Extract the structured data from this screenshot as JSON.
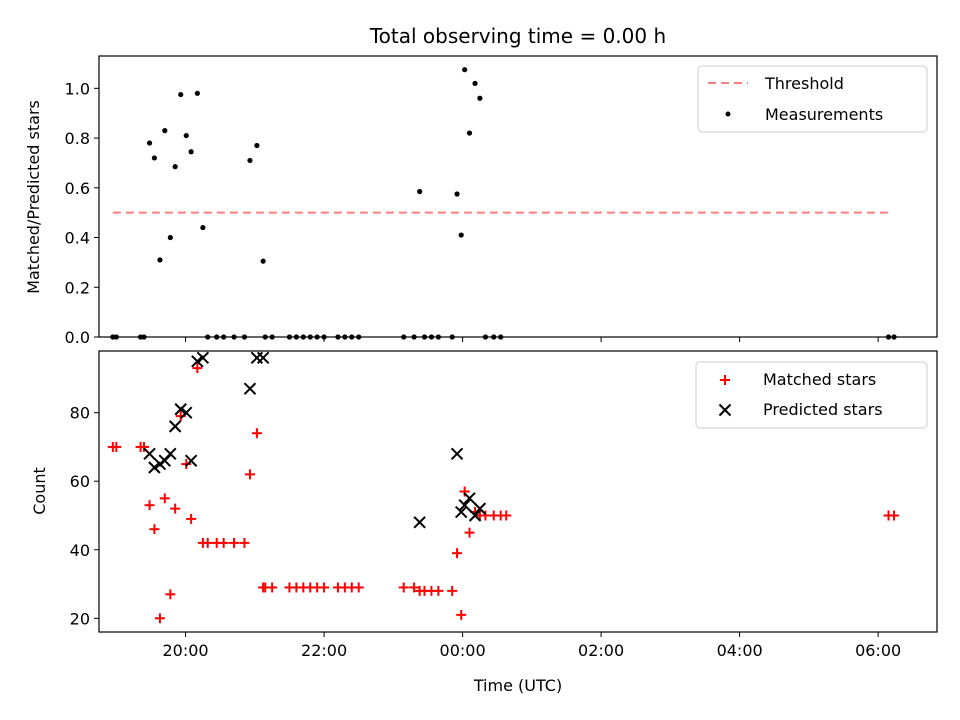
{
  "figure": {
    "title": "Total observing time = 0.00 h"
  },
  "colors": {
    "threshold": "#ff7f7f",
    "measurement": "#000000",
    "matched": "#ff0000",
    "predicted": "#000000",
    "axes": "#000000"
  },
  "chart_data": [
    {
      "type": "scatter",
      "ylabel": "Matched/Predicted stars",
      "xlabel": "",
      "x_unit": "hours (UTC, values beyond 24 denote next day)",
      "xlim": [
        18.75,
        30.85
      ],
      "ylim": [
        0.0,
        1.13
      ],
      "yticks": [
        0.0,
        0.2,
        0.4,
        0.6,
        0.8,
        1.0
      ],
      "ytick_labels": [
        "0.0",
        "0.2",
        "0.4",
        "0.6",
        "0.8",
        "1.0"
      ],
      "legend_placement": "top-right",
      "threshold": {
        "name": "Threshold",
        "value": 0.5,
        "x_range": [
          18.95,
          30.2
        ]
      },
      "series": [
        {
          "name": "Measurements",
          "points": [
            [
              18.95,
              0.0
            ],
            [
              19.0,
              0.0
            ],
            [
              19.35,
              0.0
            ],
            [
              19.4,
              0.0
            ],
            [
              19.48,
              0.78
            ],
            [
              19.55,
              0.72
            ],
            [
              19.63,
              0.31
            ],
            [
              19.7,
              0.83
            ],
            [
              19.78,
              0.4
            ],
            [
              19.85,
              0.685
            ],
            [
              19.93,
              0.975
            ],
            [
              20.01,
              0.81
            ],
            [
              20.08,
              0.745
            ],
            [
              20.17,
              0.98
            ],
            [
              20.25,
              0.44
            ],
            [
              20.32,
              0.0
            ],
            [
              20.45,
              0.0
            ],
            [
              20.55,
              0.0
            ],
            [
              20.7,
              0.0
            ],
            [
              20.85,
              0.0
            ],
            [
              20.93,
              0.71
            ],
            [
              21.03,
              0.77
            ],
            [
              21.12,
              0.305
            ],
            [
              21.15,
              0.0
            ],
            [
              21.25,
              0.0
            ],
            [
              21.5,
              0.0
            ],
            [
              21.6,
              0.0
            ],
            [
              21.7,
              0.0
            ],
            [
              21.8,
              0.0
            ],
            [
              21.9,
              0.0
            ],
            [
              22.0,
              0.0
            ],
            [
              22.2,
              0.0
            ],
            [
              22.3,
              0.0
            ],
            [
              22.4,
              0.0
            ],
            [
              22.5,
              0.0
            ],
            [
              23.15,
              0.0
            ],
            [
              23.3,
              0.0
            ],
            [
              23.38,
              0.585
            ],
            [
              23.45,
              0.0
            ],
            [
              23.55,
              0.0
            ],
            [
              23.65,
              0.0
            ],
            [
              23.85,
              0.0
            ],
            [
              23.92,
              0.575
            ],
            [
              23.98,
              0.41
            ],
            [
              24.03,
              1.075
            ],
            [
              24.1,
              0.82
            ],
            [
              24.18,
              1.02
            ],
            [
              24.25,
              0.96
            ],
            [
              24.33,
              0.0
            ],
            [
              24.45,
              0.0
            ],
            [
              24.55,
              0.0
            ],
            [
              30.15,
              0.0
            ],
            [
              30.23,
              0.0
            ]
          ]
        }
      ]
    },
    {
      "type": "scatter",
      "ylabel": "Count",
      "xlabel": "Time (UTC)",
      "xlim": [
        18.75,
        30.85
      ],
      "ylim": [
        16.0,
        98.0
      ],
      "yticks": [
        20,
        40,
        60,
        80
      ],
      "ytick_labels": [
        "20",
        "40",
        "60",
        "80"
      ],
      "xticks": [
        20,
        22,
        24,
        26,
        28,
        30
      ],
      "xtick_labels": [
        "20:00",
        "22:00",
        "00:00",
        "02:00",
        "04:00",
        "06:00"
      ],
      "legend_placement": "top-right",
      "series": [
        {
          "name": "Matched stars",
          "marker": "plus",
          "points": [
            [
              18.95,
              70
            ],
            [
              19.0,
              70
            ],
            [
              19.35,
              70
            ],
            [
              19.4,
              70
            ],
            [
              19.48,
              53
            ],
            [
              19.55,
              46
            ],
            [
              19.63,
              20
            ],
            [
              19.7,
              55
            ],
            [
              19.78,
              27
            ],
            [
              19.85,
              52
            ],
            [
              19.93,
              79
            ],
            [
              20.01,
              65
            ],
            [
              20.08,
              49
            ],
            [
              20.17,
              93
            ],
            [
              20.25,
              42
            ],
            [
              20.32,
              42
            ],
            [
              20.45,
              42
            ],
            [
              20.55,
              42
            ],
            [
              20.7,
              42
            ],
            [
              20.85,
              42
            ],
            [
              20.93,
              62
            ],
            [
              21.03,
              74
            ],
            [
              21.12,
              29
            ],
            [
              21.15,
              29
            ],
            [
              21.25,
              29
            ],
            [
              21.5,
              29
            ],
            [
              21.6,
              29
            ],
            [
              21.7,
              29
            ],
            [
              21.8,
              29
            ],
            [
              21.9,
              29
            ],
            [
              22.0,
              29
            ],
            [
              22.2,
              29
            ],
            [
              22.3,
              29
            ],
            [
              22.4,
              29
            ],
            [
              22.5,
              29
            ],
            [
              23.15,
              29
            ],
            [
              23.3,
              29
            ],
            [
              23.38,
              28
            ],
            [
              23.45,
              28
            ],
            [
              23.55,
              28
            ],
            [
              23.65,
              28
            ],
            [
              23.85,
              28
            ],
            [
              23.92,
              39
            ],
            [
              23.98,
              21
            ],
            [
              24.03,
              57
            ],
            [
              24.1,
              45
            ],
            [
              24.18,
              51
            ],
            [
              24.25,
              50
            ],
            [
              24.33,
              50
            ],
            [
              24.45,
              50
            ],
            [
              24.55,
              50
            ],
            [
              24.63,
              50
            ],
            [
              30.15,
              50
            ],
            [
              30.23,
              50
            ]
          ]
        },
        {
          "name": "Predicted stars",
          "marker": "x",
          "points": [
            [
              19.48,
              68
            ],
            [
              19.55,
              64
            ],
            [
              19.63,
              65
            ],
            [
              19.7,
              66
            ],
            [
              19.78,
              68
            ],
            [
              19.85,
              76
            ],
            [
              19.93,
              81
            ],
            [
              20.01,
              80
            ],
            [
              20.08,
              66
            ],
            [
              20.17,
              95
            ],
            [
              20.25,
              96
            ],
            [
              20.93,
              87
            ],
            [
              21.03,
              96
            ],
            [
              21.12,
              96
            ],
            [
              23.38,
              48
            ],
            [
              23.92,
              68
            ],
            [
              23.98,
              51
            ],
            [
              24.03,
              53
            ],
            [
              24.1,
              55
            ],
            [
              24.18,
              50
            ],
            [
              24.25,
              52
            ]
          ]
        }
      ]
    }
  ]
}
